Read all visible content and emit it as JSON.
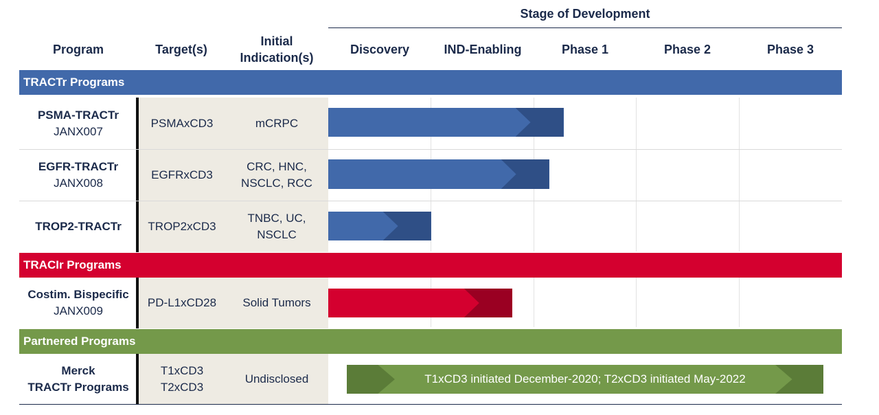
{
  "header": {
    "stage_title": "Stage of Development",
    "columns": {
      "program": "Program",
      "targets": "Target(s)",
      "indications_line1": "Initial",
      "indications_line2": "Indication(s)"
    },
    "stages": [
      "Discovery",
      "IND-Enabling",
      "Phase 1",
      "Phase 2",
      "Phase 3"
    ]
  },
  "sections": [
    {
      "label": "TRACTr Programs",
      "color": "#4169aa"
    },
    {
      "label": "TRACIr Programs",
      "color": "#d4002f"
    },
    {
      "label": "Partnered Programs",
      "color": "#74994a"
    }
  ],
  "rows": [
    {
      "name": "PSMA-TRACTr",
      "code": "JANX007",
      "target": "PSMAxCD3",
      "target2": "",
      "indication": "mCRPC",
      "indication2": ""
    },
    {
      "name": "EGFR-TRACTr",
      "code": "JANX008",
      "target": "EGFRxCD3",
      "target2": "",
      "indication": "CRC, HNC,",
      "indication2": "NSCLC, RCC"
    },
    {
      "name": "TROP2-TRACTr",
      "code": "",
      "target": "TROP2xCD3",
      "target2": "",
      "indication": "TNBC, UC,",
      "indication2": "NSCLC"
    },
    {
      "name": "Costim. Bispecific",
      "code": "JANX009",
      "target": "PD-L1xCD28",
      "target2": "",
      "indication": "Solid Tumors",
      "indication2": ""
    },
    {
      "name": "Merck",
      "code": "TRACTr Programs",
      "target": "T1xCD3",
      "target2": "T2xCD3",
      "indication": "Undisclosed",
      "indication2": ""
    }
  ],
  "chart_data": {
    "type": "bar",
    "orientation": "horizontal",
    "categories": [
      "Discovery",
      "IND-Enabling",
      "Phase 1",
      "Phase 2",
      "Phase 3"
    ],
    "scale": "0 = start of Discovery, 5 = end of Phase 3 (one unit per stage)",
    "bars": [
      {
        "program": "PSMA-TRACTr",
        "start": 0,
        "end": 2.29,
        "color": "#4169aa",
        "accent": "#2f4f86"
      },
      {
        "program": "EGFR-TRACTr",
        "start": 0,
        "end": 2.15,
        "color": "#4169aa",
        "accent": "#2f4f86"
      },
      {
        "program": "TROP2-TRACTr",
        "start": 0,
        "end": 1.0,
        "color": "#4169aa",
        "accent": "#2f4f86"
      },
      {
        "program": "Costim. Bispecific",
        "start": 0,
        "end": 1.79,
        "color": "#d4002f",
        "accent": "#9a0022"
      },
      {
        "program": "Merck TRACTr Programs",
        "start": 0.18,
        "end": 4.82,
        "color": "#74994a",
        "accent": "#5b7c38",
        "label": "T1xCD3 initiated December-2020; T2xCD3 initiated May-2022"
      }
    ]
  }
}
